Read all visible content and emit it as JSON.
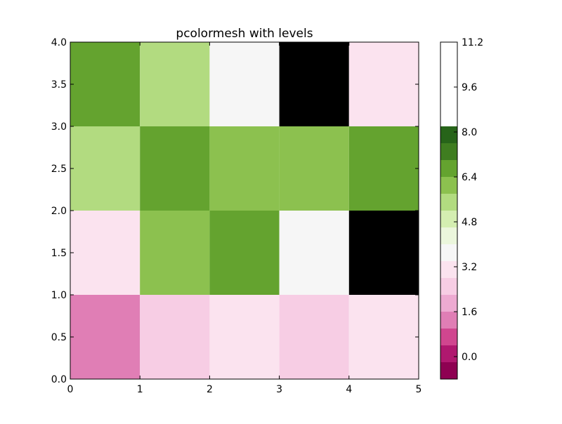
{
  "chart_data": {
    "type": "heatmap",
    "title": "pcolormesh with levels",
    "xlabel": "",
    "ylabel": "",
    "xlim": [
      0,
      5
    ],
    "ylim": [
      0,
      4
    ],
    "x_edges": [
      0,
      1,
      2,
      3,
      4,
      5
    ],
    "y_edges": [
      0,
      1,
      2,
      3,
      4
    ],
    "x_ticks": [
      "0",
      "1",
      "2",
      "3",
      "4",
      "5"
    ],
    "y_ticks": [
      "0.0",
      "0.5",
      "1.0",
      "1.5",
      "2.0",
      "2.5",
      "3.0",
      "3.5",
      "4.0"
    ],
    "grid": false,
    "values_rows_bottom_to_top": [
      [
        1.4,
        2.2,
        2.8,
        2.2,
        2.8
      ],
      [
        2.8,
        6.2,
        6.8,
        3.4,
        8.2
      ],
      [
        5.4,
        6.8,
        6.2,
        6.2,
        6.8
      ],
      [
        6.8,
        5.4,
        3.4,
        8.2,
        2.8
      ]
    ],
    "colorbar": {
      "levels": [
        -0.8,
        -0.2,
        0.4,
        1.0,
        1.6,
        2.2,
        2.8,
        3.4,
        4.0,
        4.6,
        5.2,
        5.8,
        6.4,
        7.0,
        7.6,
        8.2,
        8.8,
        9.4,
        10.0,
        10.6,
        11.2
      ],
      "colors": [
        "#8e0152",
        "#b0186f",
        "#d0468f",
        "#e07eb5",
        "#edaad1",
        "#f7cde4",
        "#fbe3ef",
        "#f6f6f6",
        "#ebf6dc",
        "#d4eeb1",
        "#b2db80",
        "#8cc14f",
        "#64a32f",
        "#3f7d20",
        "#276419"
      ],
      "tick_values": [
        0.0,
        1.6,
        3.2,
        4.8,
        6.4,
        8.0,
        9.6,
        11.2
      ],
      "tick_labels": [
        "0.0",
        "1.6",
        "3.2",
        "4.8",
        "6.4",
        "8.0",
        "9.6",
        "11.2"
      ]
    }
  }
}
